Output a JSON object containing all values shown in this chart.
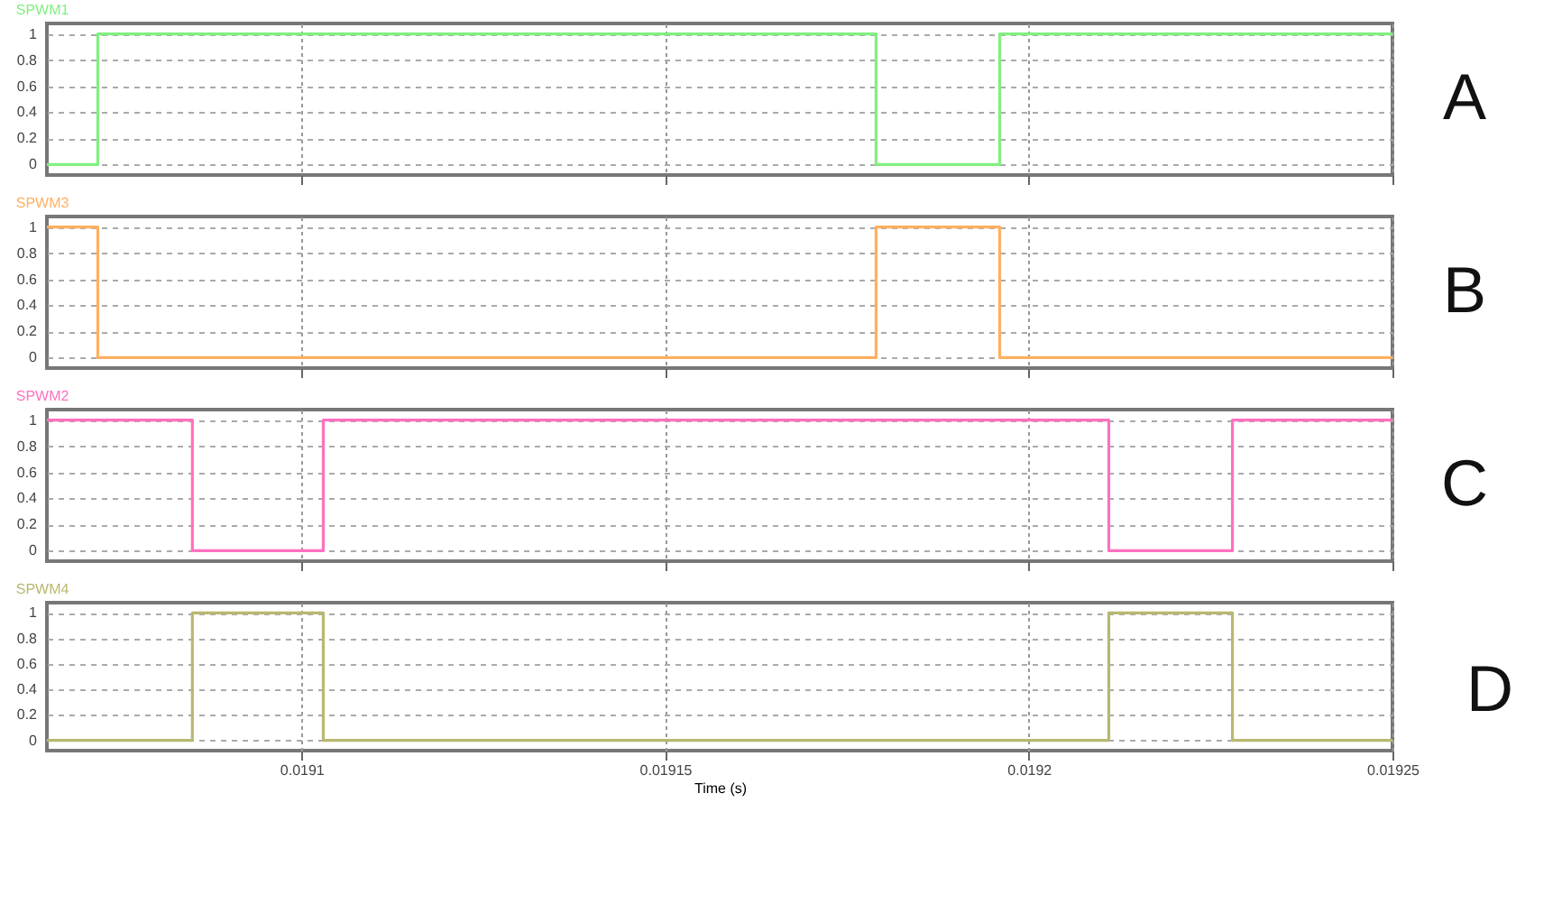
{
  "chart_data": [
    {
      "type": "step",
      "xlim": [
        0.019065,
        0.01925
      ],
      "xticks": [
        0.0191,
        0.01915,
        0.0192,
        0.01925
      ],
      "ylim": [
        -0.08,
        1.08
      ],
      "yticks": [
        0,
        0.2,
        0.4,
        0.6,
        0.8,
        1
      ],
      "grid": true,
      "tick_labels": "y",
      "annotations": [
        "A"
      ],
      "series": [
        {
          "name": "SPWM1",
          "color": "#80f080",
          "x": [
            0.019065,
            0.019072,
            0.019179,
            0.019196,
            0.01925
          ],
          "values": [
            0,
            1,
            0,
            1,
            1
          ]
        }
      ]
    },
    {
      "type": "step",
      "xlim": [
        0.019065,
        0.01925
      ],
      "xticks": [
        0.0191,
        0.01915,
        0.0192,
        0.01925
      ],
      "ylim": [
        -0.08,
        1.08
      ],
      "yticks": [
        0,
        0.2,
        0.4,
        0.6,
        0.8,
        1
      ],
      "grid": true,
      "tick_labels": "y",
      "annotations": [
        "B"
      ],
      "series": [
        {
          "name": "SPWM3",
          "color": "#ffb060",
          "x": [
            0.019065,
            0.019072,
            0.019179,
            0.019196,
            0.01925
          ],
          "values": [
            1,
            0,
            1,
            0,
            0
          ]
        }
      ]
    },
    {
      "type": "step",
      "xlim": [
        0.019065,
        0.01925
      ],
      "xticks": [
        0.0191,
        0.01915,
        0.0192,
        0.01925
      ],
      "ylim": [
        -0.08,
        1.08
      ],
      "yticks": [
        0,
        0.2,
        0.4,
        0.6,
        0.8,
        1
      ],
      "grid": true,
      "tick_labels": "y",
      "annotations": [
        "C"
      ],
      "series": [
        {
          "name": "SPWM2",
          "color": "#ff70c0",
          "x": [
            0.019065,
            0.019085,
            0.019103,
            0.019211,
            0.019228,
            0.01925
          ],
          "values": [
            1,
            0,
            1,
            0,
            1,
            1
          ]
        }
      ]
    },
    {
      "type": "step",
      "xlim": [
        0.019065,
        0.01925
      ],
      "xticks": [
        0.0191,
        0.01915,
        0.0192,
        0.01925
      ],
      "ylim": [
        -0.08,
        1.08
      ],
      "yticks": [
        0,
        0.2,
        0.4,
        0.6,
        0.8,
        1
      ],
      "grid": true,
      "xlabel": "Time (s)",
      "annotations": [
        "D"
      ],
      "series": [
        {
          "name": "SPWM4",
          "color": "#b8b870",
          "x": [
            0.019065,
            0.019085,
            0.019103,
            0.019211,
            0.019228,
            0.01925
          ],
          "values": [
            0,
            1,
            0,
            1,
            0,
            0
          ]
        }
      ]
    }
  ]
}
